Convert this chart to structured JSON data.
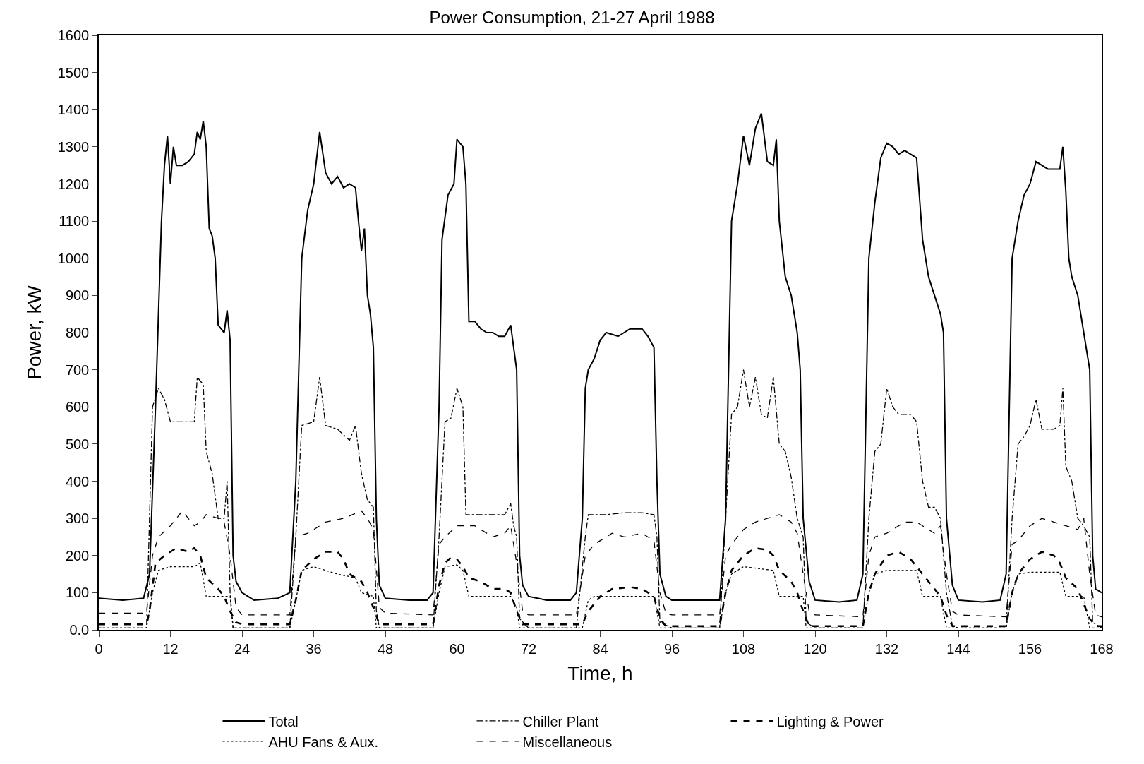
{
  "chart_data": {
    "type": "line",
    "title": "Power Consumption, 21-27 April 1988",
    "xlabel": "Time, h",
    "ylabel": "Power, kW",
    "xlim": [
      0,
      168
    ],
    "xticks": [
      0,
      12,
      24,
      36,
      48,
      60,
      72,
      84,
      96,
      108,
      120,
      132,
      144,
      156,
      168
    ],
    "ylim": [
      0,
      1600
    ],
    "yticks": [
      {
        "value": 0,
        "label": "0.0"
      },
      100,
      200,
      300,
      400,
      500,
      600,
      700,
      800,
      900,
      1000,
      1100,
      1200,
      1300,
      1400,
      1500,
      1600
    ],
    "legend": "bottom",
    "marker": "none",
    "series": [
      {
        "name": "Total",
        "color": "#000000",
        "line_style": "solid",
        "x": [
          0,
          4,
          7.5,
          8.5,
          9.5,
          10.5,
          11,
          11.5,
          12,
          12.5,
          13,
          14,
          15,
          16,
          16.5,
          17,
          17.5,
          18,
          18.5,
          19,
          19.5,
          20,
          21,
          21.5,
          22,
          22.5,
          23,
          24,
          26,
          30,
          32,
          33,
          34,
          35,
          36,
          37,
          38,
          39,
          40,
          41,
          42,
          43,
          43.5,
          44,
          44.5,
          45,
          45.5,
          46,
          46.5,
          47,
          48,
          52,
          55,
          56,
          57,
          57.5,
          58.5,
          59.5,
          60,
          61,
          61.5,
          62,
          63,
          64,
          65,
          66,
          67,
          68,
          69,
          69.5,
          70,
          70.5,
          71,
          72,
          75,
          79,
          80,
          81,
          81.5,
          82,
          83,
          84,
          85,
          87,
          89,
          91,
          92,
          93,
          93.5,
          94,
          95,
          96,
          100,
          104,
          105,
          106,
          107,
          108,
          109,
          110,
          111,
          112,
          113,
          113.5,
          114,
          115,
          116,
          117,
          117.5,
          118,
          119,
          120,
          124,
          127,
          128,
          129,
          130,
          131,
          132,
          133,
          134,
          135,
          136,
          137,
          138,
          139,
          140,
          141,
          141.5,
          142,
          143,
          144,
          148,
          151,
          152,
          153,
          154,
          155,
          156,
          157,
          158,
          159,
          160,
          161,
          161.5,
          162,
          162.5,
          163,
          164,
          165,
          166,
          166.5,
          167,
          168
        ],
        "values": [
          85,
          80,
          85,
          150,
          600,
          1100,
          1250,
          1330,
          1200,
          1300,
          1250,
          1250,
          1260,
          1280,
          1340,
          1320,
          1370,
          1300,
          1080,
          1060,
          1000,
          820,
          800,
          860,
          780,
          200,
          130,
          100,
          80,
          85,
          100,
          400,
          1000,
          1130,
          1200,
          1340,
          1230,
          1200,
          1220,
          1190,
          1200,
          1190,
          1100,
          1020,
          1080,
          900,
          850,
          760,
          300,
          120,
          85,
          80,
          80,
          100,
          600,
          1050,
          1170,
          1200,
          1320,
          1300,
          1200,
          830,
          830,
          810,
          800,
          800,
          790,
          790,
          820,
          760,
          700,
          200,
          120,
          90,
          80,
          80,
          100,
          300,
          650,
          700,
          730,
          780,
          800,
          790,
          810,
          810,
          790,
          760,
          400,
          150,
          90,
          80,
          80,
          80,
          300,
          1100,
          1200,
          1330,
          1250,
          1350,
          1390,
          1260,
          1250,
          1320,
          1100,
          950,
          900,
          800,
          700,
          300,
          130,
          80,
          75,
          80,
          150,
          1000,
          1150,
          1270,
          1310,
          1300,
          1280,
          1290,
          1280,
          1270,
          1050,
          950,
          900,
          850,
          800,
          300,
          120,
          80,
          75,
          80,
          150,
          1000,
          1100,
          1170,
          1200,
          1260,
          1250,
          1240,
          1240,
          1240,
          1300,
          1180,
          1000,
          950,
          900,
          800,
          700,
          200,
          110,
          100
        ]
      },
      {
        "name": "Chiller Plant",
        "color": "#000000",
        "line_style": "dashdot",
        "x": [
          0,
          8,
          9,
          10,
          11,
          12,
          14,
          16,
          16.5,
          17.5,
          18,
          19,
          20,
          21,
          21.5,
          22,
          22.5,
          24,
          32,
          33,
          34,
          36,
          37,
          38,
          40,
          42,
          43,
          44,
          45,
          46,
          46.5,
          47,
          48,
          56,
          57,
          58,
          59,
          60,
          61,
          61.5,
          63,
          66,
          68,
          69,
          69.5,
          70,
          70.5,
          72,
          80,
          81.5,
          82,
          85,
          88,
          91,
          93,
          93.5,
          94,
          96,
          104,
          105,
          106,
          107,
          108,
          109,
          110,
          111,
          112,
          113,
          114,
          115,
          116,
          117,
          118,
          118.5,
          120,
          128,
          129,
          130,
          131,
          132,
          133,
          134,
          136,
          137,
          138,
          139,
          140,
          141,
          142,
          143,
          144,
          152,
          153,
          154,
          155,
          156,
          157,
          158,
          160,
          161,
          161.5,
          162,
          163,
          164,
          165,
          166,
          166.5,
          168
        ],
        "values": [
          5,
          5,
          600,
          650,
          620,
          560,
          560,
          560,
          680,
          660,
          480,
          420,
          300,
          300,
          400,
          100,
          5,
          5,
          5,
          250,
          550,
          560,
          680,
          550,
          540,
          510,
          550,
          420,
          350,
          330,
          50,
          5,
          5,
          5,
          250,
          560,
          570,
          650,
          600,
          310,
          310,
          310,
          310,
          340,
          280,
          250,
          30,
          5,
          5,
          250,
          310,
          310,
          315,
          315,
          310,
          250,
          20,
          5,
          5,
          300,
          580,
          600,
          700,
          600,
          680,
          580,
          570,
          680,
          500,
          480,
          410,
          300,
          250,
          20,
          5,
          5,
          300,
          480,
          500,
          650,
          600,
          580,
          580,
          560,
          400,
          330,
          330,
          300,
          100,
          10,
          5,
          5,
          300,
          500,
          520,
          550,
          620,
          540,
          540,
          550,
          650,
          440,
          400,
          300,
          280,
          250,
          20,
          5
        ]
      },
      {
        "name": "Lighting & Power",
        "color": "#000000",
        "line_style": "dashed",
        "x": [
          0,
          8,
          8.5,
          9.5,
          11,
          13,
          15,
          16,
          17,
          18,
          20,
          21,
          22,
          23,
          24,
          32,
          33,
          34,
          36,
          38,
          40,
          41,
          42,
          44,
          45,
          46,
          47,
          48,
          56,
          57,
          58,
          59,
          60,
          61,
          62,
          64,
          66,
          68,
          69,
          70,
          71,
          72,
          81,
          82,
          84,
          86,
          89,
          91,
          93,
          94,
          95,
          96,
          104,
          105,
          106,
          108,
          110,
          112,
          113,
          114,
          116,
          117,
          118,
          119,
          120,
          128,
          129,
          130,
          132,
          134,
          136,
          137,
          139,
          140,
          141,
          142,
          143,
          144,
          152,
          153,
          154,
          156,
          158,
          160,
          161,
          162,
          164,
          165,
          166,
          167,
          168
        ],
        "values": [
          15,
          15,
          50,
          180,
          200,
          220,
          210,
          220,
          200,
          140,
          110,
          90,
          50,
          20,
          15,
          15,
          80,
          160,
          190,
          210,
          210,
          190,
          150,
          130,
          100,
          60,
          15,
          15,
          15,
          120,
          180,
          195,
          190,
          170,
          140,
          130,
          110,
          110,
          100,
          50,
          15,
          15,
          15,
          50,
          90,
          110,
          115,
          110,
          90,
          30,
          10,
          10,
          10,
          100,
          160,
          200,
          220,
          215,
          200,
          160,
          130,
          100,
          50,
          10,
          10,
          10,
          100,
          150,
          200,
          210,
          190,
          170,
          130,
          110,
          90,
          40,
          10,
          10,
          10,
          100,
          150,
          190,
          210,
          200,
          180,
          140,
          110,
          70,
          30,
          10,
          10
        ]
      },
      {
        "name": "AHU Fans & Aux.",
        "color": "#000000",
        "line_style": "dotted",
        "x": [
          0,
          8,
          9,
          10,
          12,
          16,
          17,
          18,
          22,
          22.5,
          24,
          32,
          33,
          34,
          36,
          40,
          43,
          44,
          46,
          46.5,
          48,
          56,
          57,
          58,
          60,
          61,
          62,
          69,
          70,
          70.5,
          72,
          81,
          82,
          83,
          93,
          94,
          96,
          104,
          105,
          106,
          108,
          113,
          114,
          118,
          118.5,
          120,
          128,
          129,
          130,
          132,
          137,
          138,
          141,
          142,
          144,
          152,
          153,
          154,
          156,
          161,
          162,
          165,
          166,
          168
        ],
        "values": [
          5,
          5,
          100,
          160,
          170,
          170,
          180,
          90,
          90,
          5,
          5,
          5,
          80,
          160,
          170,
          150,
          140,
          100,
          90,
          5,
          5,
          5,
          100,
          170,
          175,
          160,
          90,
          90,
          60,
          5,
          5,
          5,
          80,
          90,
          90,
          5,
          5,
          5,
          100,
          150,
          170,
          160,
          90,
          90,
          5,
          5,
          5,
          100,
          150,
          160,
          160,
          90,
          90,
          5,
          5,
          5,
          100,
          150,
          155,
          155,
          90,
          90,
          5,
          5
        ]
      },
      {
        "name": "Miscellaneous",
        "color": "#000000",
        "line_style": "dashed",
        "x": [
          0,
          8,
          9,
          10,
          12,
          14,
          15,
          16,
          17,
          18,
          20,
          21,
          22,
          23,
          24,
          32,
          33,
          35,
          38,
          41,
          44,
          45,
          46,
          47,
          48,
          56,
          57,
          58,
          60,
          63,
          66,
          68,
          69,
          70,
          71,
          72,
          80,
          81.5,
          83,
          86,
          88,
          91,
          93,
          94,
          95,
          96,
          104,
          105,
          106,
          108,
          110,
          112,
          114,
          116,
          117,
          118,
          119,
          120,
          128,
          129,
          130,
          132,
          135,
          137,
          140,
          141,
          142,
          143,
          144,
          152,
          153,
          154,
          156,
          158,
          160,
          162,
          164,
          165,
          166,
          167,
          168
        ],
        "values": [
          45,
          45,
          200,
          250,
          280,
          320,
          300,
          280,
          290,
          310,
          300,
          290,
          200,
          60,
          40,
          40,
          250,
          260,
          290,
          300,
          320,
          300,
          270,
          60,
          45,
          40,
          230,
          250,
          280,
          280,
          250,
          260,
          280,
          180,
          50,
          40,
          40,
          200,
          230,
          260,
          250,
          260,
          240,
          100,
          45,
          40,
          40,
          200,
          230,
          270,
          290,
          300,
          310,
          290,
          260,
          150,
          50,
          40,
          35,
          200,
          250,
          260,
          290,
          290,
          260,
          280,
          150,
          50,
          40,
          35,
          230,
          240,
          280,
          300,
          290,
          280,
          270,
          300,
          150,
          40,
          35
        ]
      }
    ]
  }
}
